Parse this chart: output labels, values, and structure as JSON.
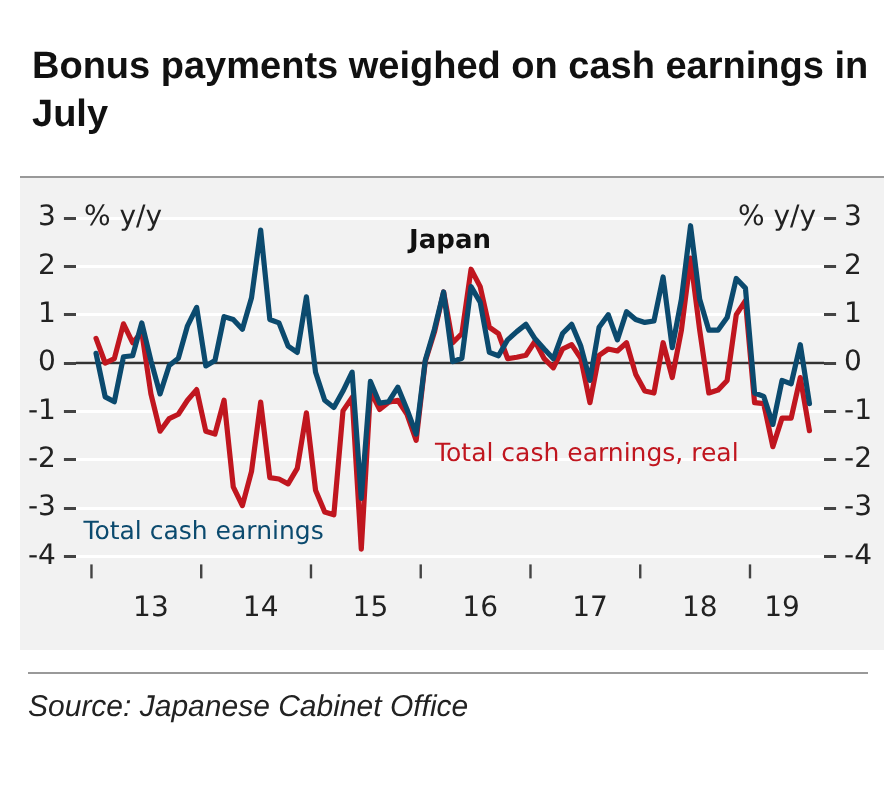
{
  "chart_data": {
    "type": "line",
    "title": "Bonus payments weighed on cash earnings in July",
    "ylabel": "% y/y",
    "y2label": "% y/y",
    "annotations": [
      "Japan",
      "Source: Japanese Cabinet Office"
    ],
    "categories": [
      null,
      null,
      null,
      null,
      null,
      null,
      "13",
      null,
      null,
      null,
      null,
      null,
      null,
      null,
      null,
      null,
      null,
      null,
      "14",
      null,
      null,
      null,
      null,
      null,
      null,
      null,
      null,
      null,
      null,
      null,
      "15",
      null,
      null,
      null,
      null,
      null,
      null,
      null,
      null,
      null,
      null,
      null,
      "16",
      null,
      null,
      null,
      null,
      null,
      null,
      null,
      null,
      null,
      null,
      null,
      "17",
      null,
      null,
      null,
      null,
      null,
      null,
      null,
      null,
      null,
      null,
      null,
      "18",
      null,
      null,
      null,
      null,
      null,
      null,
      null,
      null,
      "19",
      null,
      null,
      null
    ],
    "ylim": [
      -4,
      3
    ],
    "yticks": [
      -4,
      -3,
      -2,
      -1,
      0,
      1,
      2,
      3
    ],
    "y2lim": [
      -4,
      3
    ],
    "y2ticks": [
      -4,
      -3,
      -2,
      -1,
      0,
      1,
      2,
      3
    ],
    "grid": "y",
    "legend": false,
    "marker": "none",
    "line_style": "solid",
    "ref_lines": [
      {
        "axis": "y",
        "value": 0,
        "label": null,
        "color": "#333333"
      }
    ],
    "series": [
      {
        "name": "Total cash earnings",
        "color": "#0b4a6e",
        "values": [
          0.2,
          -0.7,
          -0.8,
          0.13,
          0.15,
          0.83,
          0.05,
          -0.64,
          -0.05,
          0.1,
          0.77,
          1.15,
          -0.06,
          0.05,
          0.96,
          0.9,
          0.7,
          1.35,
          2.75,
          0.9,
          0.83,
          0.35,
          0.22,
          1.37,
          -0.19,
          -0.77,
          -0.92,
          -0.58,
          -0.19,
          -2.8,
          -0.38,
          -0.83,
          -0.8,
          -0.5,
          -0.96,
          -1.47,
          0.06,
          0.7,
          1.47,
          0.03,
          0.1,
          1.58,
          1.26,
          0.22,
          0.15,
          0.48,
          0.65,
          0.8,
          0.5,
          0.29,
          0.09,
          0.61,
          0.8,
          0.35,
          -0.36,
          0.74,
          1.0,
          0.48,
          1.06,
          0.9,
          0.84,
          0.87,
          1.78,
          0.32,
          1.32,
          2.84,
          1.32,
          0.68,
          0.68,
          0.94,
          1.75,
          1.55,
          -0.62,
          -0.69,
          -1.27,
          -0.36,
          -0.43,
          0.38,
          -0.84
        ]
      },
      {
        "name": "Total cash earnings, real",
        "color": "#c0161f",
        "values": [
          0.51,
          0,
          0.09,
          0.81,
          0.42,
          0.64,
          -0.64,
          -1.41,
          -1.15,
          -1.06,
          -0.77,
          -0.55,
          -1.41,
          -1.47,
          -0.77,
          -2.56,
          -2.95,
          -2.24,
          -0.81,
          -2.37,
          -2.4,
          -2.5,
          -2.18,
          -1.03,
          -2.63,
          -3.08,
          -3.14,
          -0.99,
          -0.71,
          -3.85,
          -0.58,
          -0.96,
          -0.81,
          -0.77,
          -1.06,
          -1.6,
          0.04,
          0.64,
          1.47,
          0.42,
          0.61,
          1.94,
          1.58,
          0.74,
          0.61,
          0.09,
          0.12,
          0.16,
          0.45,
          0.09,
          -0.1,
          0.29,
          0.38,
          0.1,
          -0.82,
          0.16,
          0.29,
          0.25,
          0.42,
          -0.23,
          -0.58,
          -0.62,
          0.42,
          -0.3,
          0.68,
          2.17,
          0.68,
          -0.62,
          -0.56,
          -0.36,
          1.0,
          1.29,
          -0.82,
          -0.84,
          -1.73,
          -1.14,
          -1.14,
          -0.3,
          -1.4
        ]
      }
    ]
  }
}
